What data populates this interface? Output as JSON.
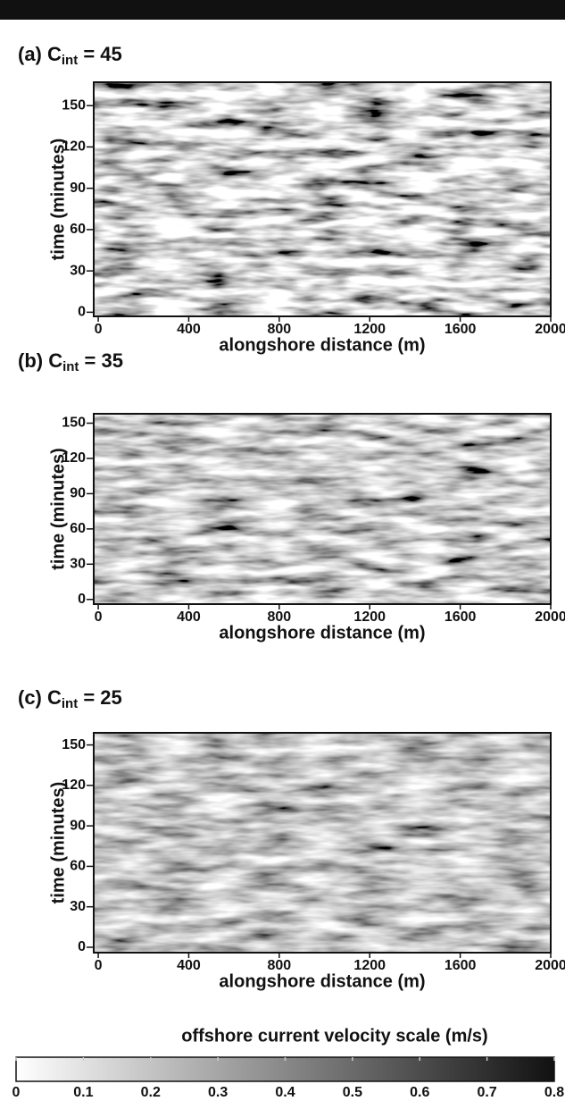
{
  "chart_data": [
    {
      "type": "heatmap",
      "title": {
        "prefix": "(a) C",
        "subscript": "int",
        "suffix": " = 45"
      },
      "x_label": "alongshore distance (m)",
      "y_label": "time (minutes)",
      "xlim": [
        -20,
        2000
      ],
      "xticks": [
        0,
        400,
        800,
        1200,
        1600,
        2000
      ],
      "ylim": [
        -3,
        167
      ],
      "yticks": [
        0,
        30,
        60,
        90,
        120,
        150
      ]
    },
    {
      "type": "heatmap",
      "title": {
        "prefix": "(b) C",
        "subscript": "int",
        "suffix": " = 35"
      },
      "x_label": "alongshore distance (m)",
      "y_label": "time (minutes)",
      "xlim": [
        -20,
        2000
      ],
      "xticks": [
        0,
        400,
        800,
        1200,
        1600,
        2000
      ],
      "ylim": [
        -4,
        158
      ],
      "yticks": [
        0,
        30,
        60,
        90,
        120,
        150
      ]
    },
    {
      "type": "heatmap",
      "title": {
        "prefix": "(c) C",
        "subscript": "int",
        "suffix": " = 25"
      },
      "x_label": "alongshore distance (m)",
      "y_label": "time (minutes)",
      "xlim": [
        -20,
        2000
      ],
      "xticks": [
        0,
        400,
        800,
        1200,
        1600,
        2000
      ],
      "ylim": [
        -4,
        159
      ],
      "yticks": [
        0,
        30,
        60,
        90,
        120,
        150
      ]
    },
    {
      "type": "colorbar",
      "title": "offshore current velocity scale (m/s)",
      "xlim": [
        0,
        0.8
      ],
      "xticks": [
        0,
        0.1,
        0.2,
        0.3,
        0.4,
        0.5,
        0.6,
        0.7,
        0.8
      ],
      "colors": [
        "#ffffff",
        "#111111"
      ]
    }
  ]
}
